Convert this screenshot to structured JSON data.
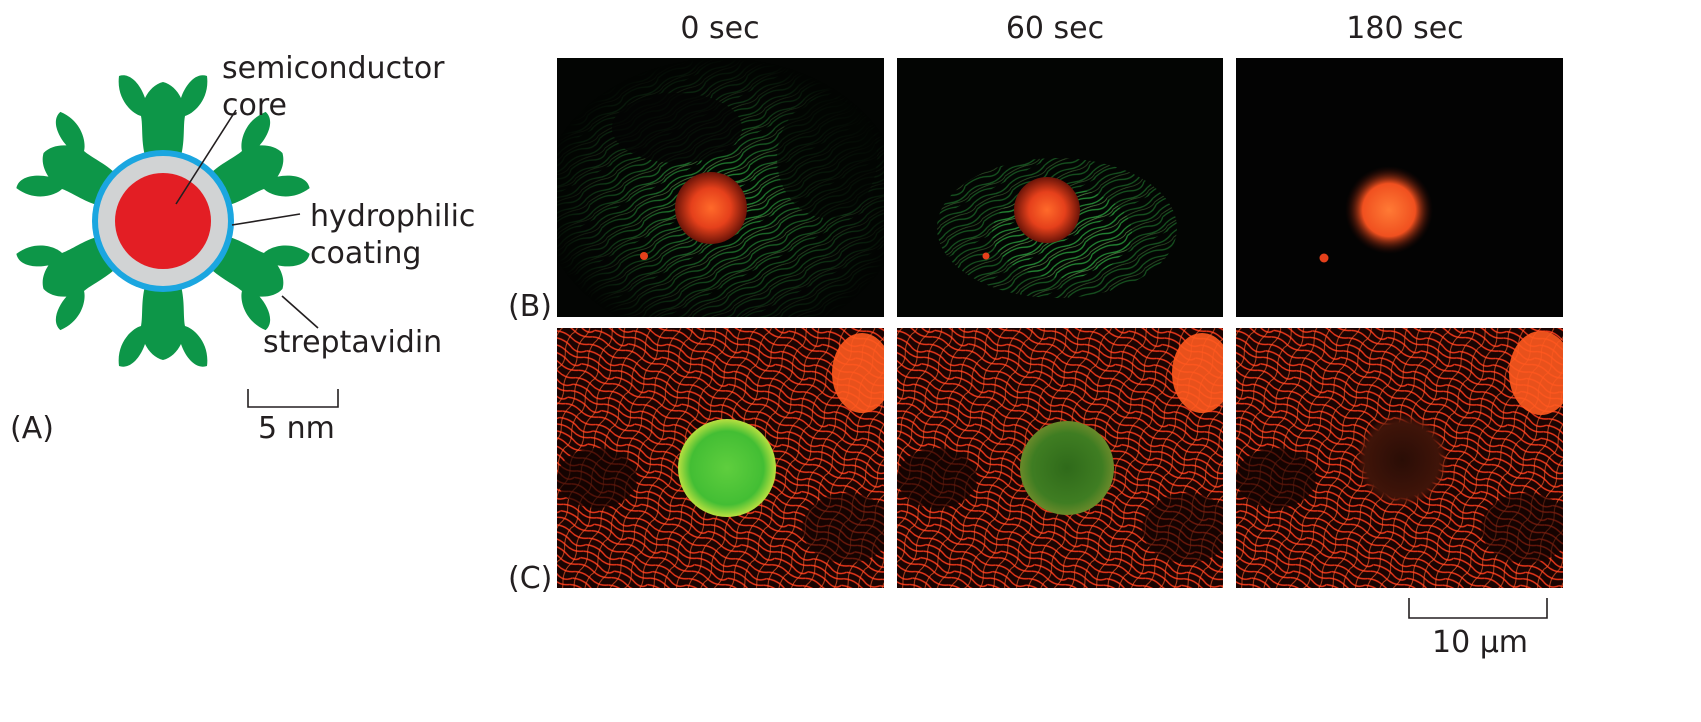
{
  "panel_a": {
    "label": "(A)",
    "labels": {
      "core": "semiconductor\ncore",
      "coating": "hydrophilic\ncoating",
      "streptavidin": "streptavidin"
    },
    "scale_bar": "5 nm",
    "colors": {
      "core": "#e31e24",
      "coating": "#d1d3d4",
      "shell": "#1ba6e0",
      "streptavidin": "#0d9648"
    }
  },
  "panel_b": {
    "label": "(B)"
  },
  "panel_c": {
    "label": "(C)"
  },
  "time_labels": [
    "0 sec",
    "60 sec",
    "180 sec"
  ],
  "scale_bar_micrographs": "10 µm"
}
